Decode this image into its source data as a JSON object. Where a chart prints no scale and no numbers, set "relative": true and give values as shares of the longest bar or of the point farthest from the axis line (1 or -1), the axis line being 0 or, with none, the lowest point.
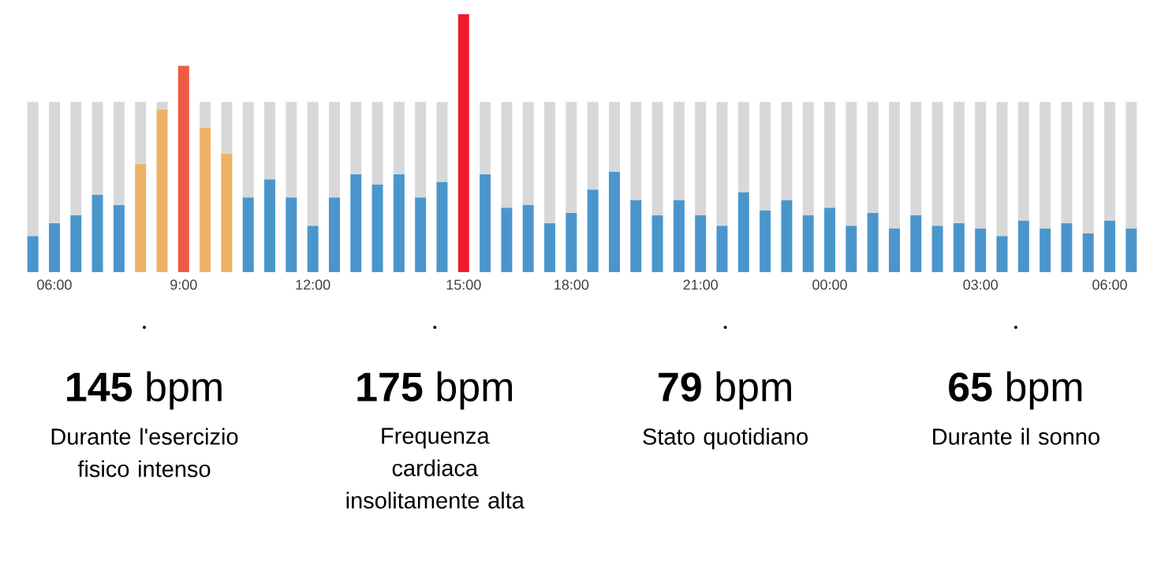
{
  "chart_data": {
    "type": "bar",
    "relative": true,
    "stacked": true,
    "categories": [
      null,
      "06:00",
      null,
      null,
      null,
      null,
      null,
      "9:00",
      null,
      null,
      null,
      null,
      null,
      "12:00",
      null,
      null,
      null,
      null,
      null,
      null,
      "15:00",
      null,
      null,
      null,
      null,
      "18:00",
      null,
      null,
      null,
      null,
      null,
      "21:00",
      null,
      null,
      null,
      null,
      null,
      "00:00",
      null,
      null,
      null,
      null,
      null,
      null,
      "03:00",
      null,
      null,
      null,
      null,
      null,
      "06:00",
      null
    ],
    "series": [
      {
        "colors": [
          "#4a96cc",
          "#4a96cc",
          "#4a96cc",
          "#4a96cc",
          "#4a96cc",
          "#eeb266",
          "#eeb266",
          "#f05a45",
          "#eeb266",
          "#eeb266",
          "#4a96cc",
          "#4a96cc",
          "#4a96cc",
          "#4a96cc",
          "#4a96cc",
          "#4a96cc",
          "#4a96cc",
          "#4a96cc",
          "#4a96cc",
          "#4a96cc",
          "#ee1c2e",
          "#4a96cc",
          "#4a96cc",
          "#4a96cc",
          "#4a96cc",
          "#4a96cc",
          "#4a96cc",
          "#4a96cc",
          "#4a96cc",
          "#4a96cc",
          "#4a96cc",
          "#4a96cc",
          "#4a96cc",
          "#4a96cc",
          "#4a96cc",
          "#4a96cc",
          "#4a96cc",
          "#4a96cc",
          "#4a96cc",
          "#4a96cc",
          "#4a96cc",
          "#4a96cc",
          "#4a96cc",
          "#4a96cc",
          "#4a96cc",
          "#4a96cc",
          "#4a96cc",
          "#4a96cc",
          "#4a96cc",
          "#4a96cc",
          "#4a96cc",
          "#4a96cc"
        ],
        "values": [
          0.14,
          0.19,
          0.22,
          0.3,
          0.26,
          0.42,
          0.63,
          0.8,
          0.56,
          0.46,
          0.29,
          0.36,
          0.29,
          0.18,
          0.29,
          0.38,
          0.34,
          0.38,
          0.29,
          0.35,
          1,
          0.38,
          0.25,
          0.26,
          0.19,
          0.23,
          0.32,
          0.39,
          0.28,
          0.22,
          0.28,
          0.22,
          0.18,
          0.31,
          0.24,
          0.28,
          0.22,
          0.25,
          0.18,
          0.23,
          0.17,
          0.22,
          0.18,
          0.19,
          0.17,
          0.14,
          0.2,
          0.17,
          0.19,
          0.15,
          0.2,
          0.17
        ]
      },
      {
        "color": "#d7d8da",
        "values": [
          0.52,
          0.47,
          0.44,
          0.36,
          0.4,
          0.24,
          0.03,
          null,
          0.1,
          0.2,
          0.37,
          0.3,
          0.37,
          0.48,
          0.37,
          0.28,
          0.32,
          0.28,
          0.37,
          0.31,
          null,
          0.28,
          0.41,
          0.4,
          0.47,
          0.43,
          0.34,
          0.27,
          0.38,
          0.44,
          0.38,
          0.44,
          0.48,
          0.35,
          0.42,
          0.38,
          0.44,
          0.41,
          0.48,
          0.43,
          0.49,
          0.44,
          0.48,
          0.47,
          0.49,
          0.52,
          0.46,
          0.49,
          0.47,
          0.51,
          0.46,
          0.49
        ]
      }
    ],
    "annotations": [
      "**145** bpm",
      "Durante l'esercizio fisico intenso",
      "**175** bpm",
      "Frequenza cardiaca insolitamente alta",
      "**79** bpm",
      "Stato quotidiano",
      "**65** bpm",
      "Durante il sonno"
    ]
  }
}
